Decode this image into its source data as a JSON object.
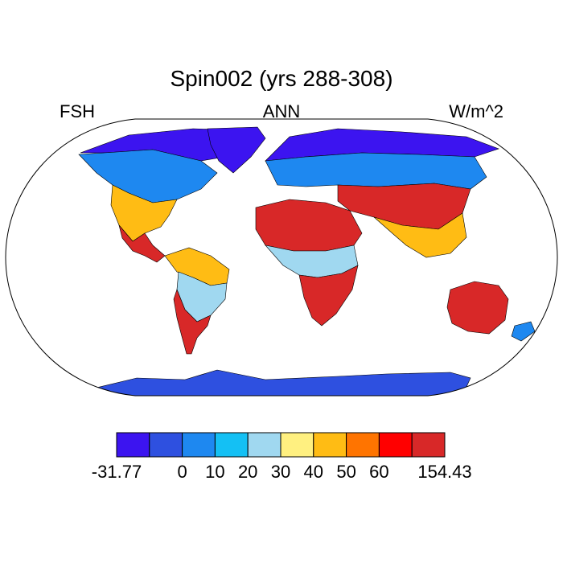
{
  "plot": {
    "title": "Spin002 (yrs 288-308)",
    "left_label": "FSH",
    "center_label": "ANN",
    "right_label": "W/m^2",
    "projection": "Robinson"
  },
  "colorbar": {
    "colors": [
      "#3c14f0",
      "#2e50e0",
      "#1e88f0",
      "#14c0f4",
      "#a0d8f0",
      "#fff080",
      "#ffbc14",
      "#ff7400",
      "#ff0000",
      "#d82828"
    ],
    "labels": [
      "-31.77",
      "0",
      "10",
      "20",
      "30",
      "40",
      "50",
      "60",
      "154.43"
    ],
    "label_boundaries": [
      0,
      2,
      3,
      4,
      5,
      6,
      7,
      8,
      10
    ]
  },
  "map_style": {
    "ocean": "#ffffff",
    "outline": "#000000",
    "land_regions": [
      {
        "name": "antarctica",
        "color": "#2e50e0"
      },
      {
        "name": "arctic",
        "color": "#3c14f0"
      },
      {
        "name": "boreal",
        "color": "#1e88f0"
      },
      {
        "name": "temperate",
        "color": "#ffbc14"
      },
      {
        "name": "hot-desert",
        "color": "#d82828"
      },
      {
        "name": "tropical-forest",
        "color": "#a0d8f0"
      }
    ]
  }
}
